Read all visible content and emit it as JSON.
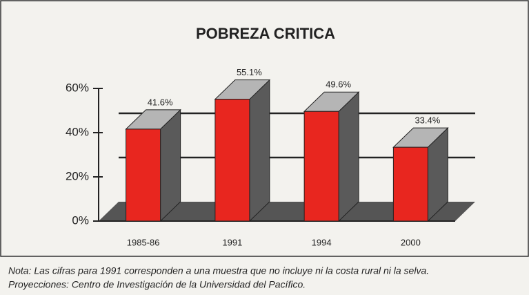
{
  "chart_data": {
    "type": "bar3d",
    "title": "POBREZA CRITICA",
    "categories": [
      "1985-86",
      "1991",
      "1994",
      "2000"
    ],
    "values": [
      41.6,
      55.1,
      49.6,
      33.4
    ],
    "value_labels": [
      "41.6%",
      "55.1%",
      "49.6%",
      "33.4%"
    ],
    "color": "#e8261f",
    "ylim": [
      0,
      60
    ],
    "yticks": [
      {
        "value": 0,
        "label": "0%"
      },
      {
        "value": 20,
        "label": "20%"
      },
      {
        "value": 40,
        "label": "40%"
      },
      {
        "value": 60,
        "label": "60%"
      }
    ],
    "grid": true,
    "notes": [
      "Nota: Las cifras para 1991 corresponden a una muestra que no incluye ni la costa rural ni la selva.",
      "Proyecciones: Centro de Investigación de la Universidad del Pacífico."
    ]
  }
}
